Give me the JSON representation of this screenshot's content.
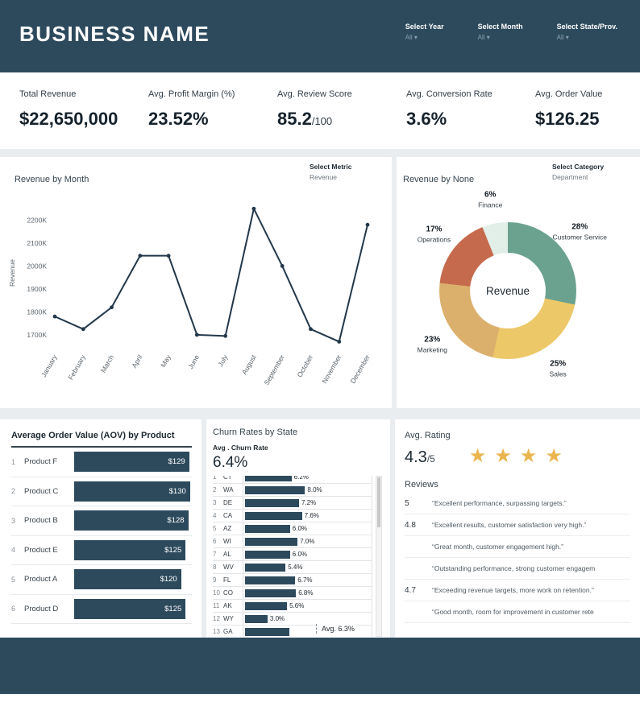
{
  "brand": {
    "navy": "#2d4a5d",
    "page_bg": "#e9edf0"
  },
  "icons": {
    "chevron_down": "▾",
    "star": "★"
  },
  "header": {
    "title": "BUSINESS NAME",
    "filters": [
      {
        "label": "Select Year",
        "value": "All"
      },
      {
        "label": "Select Month",
        "value": "All"
      },
      {
        "label": "Select State/Prov.",
        "value": "All"
      }
    ]
  },
  "kpis": [
    {
      "label": "Total Revenue",
      "value": "$22,650,000"
    },
    {
      "label": "Avg. Profit Margin (%)",
      "value": "23.52%"
    },
    {
      "label": "Avg. Review Score",
      "value": "85.2",
      "suffix": "/100"
    },
    {
      "label": "Avg. Conversion Rate",
      "value": "3.6%"
    },
    {
      "label": "Avg. Order Value",
      "value": "$126.25"
    }
  ],
  "controls": {
    "metric": {
      "label": "Select Metric",
      "value": "Revenue"
    },
    "category": {
      "label": "Select Category",
      "value": "Department"
    }
  },
  "chart_data": [
    {
      "id": "revenue_by_month",
      "type": "line",
      "title": "Revenue by Month",
      "ylabel": "Revenue",
      "unit": "K",
      "x": [
        "January",
        "February",
        "March",
        "April",
        "May",
        "June",
        "July",
        "August",
        "September",
        "October",
        "November",
        "December"
      ],
      "values": [
        1780,
        1725,
        1820,
        2045,
        2045,
        1700,
        1695,
        2250,
        2000,
        1725,
        1670,
        2180
      ],
      "ylim": [
        1640,
        2300
      ],
      "yticks": [
        1700,
        1800,
        1900,
        2000,
        2100,
        2200
      ],
      "line_color": "#22384a"
    },
    {
      "id": "revenue_by_department",
      "type": "donut",
      "title": "Revenue by None",
      "center_label": "Revenue",
      "slices": [
        {
          "name": "Customer Service",
          "pct": 28,
          "color": "#6aa28f"
        },
        {
          "name": "Sales",
          "pct": 25,
          "color": "#ecc868"
        },
        {
          "name": "Marketing",
          "pct": 23,
          "color": "#dbb06c"
        },
        {
          "name": "Operations",
          "pct": 17,
          "color": "#c66a4d"
        },
        {
          "name": "Finance",
          "pct": 6,
          "color": "#e2efe9"
        }
      ]
    },
    {
      "id": "aov_by_product",
      "type": "bar",
      "title": "Average Order Value (AOV) by Product",
      "bar_color": "#2d4a5d",
      "max_value": 132,
      "rows": [
        {
          "rank": "1",
          "name": "Product F",
          "value": 129,
          "label": "$129"
        },
        {
          "rank": "2",
          "name": "Product C",
          "value": 130,
          "label": "$130"
        },
        {
          "rank": "3",
          "name": "Product B",
          "value": 128,
          "label": "$128"
        },
        {
          "rank": "4",
          "name": "Product E",
          "value": 125,
          "label": "$125"
        },
        {
          "rank": "5",
          "name": "Product A",
          "value": 120,
          "label": "$120"
        },
        {
          "rank": "6",
          "name": "Product D",
          "value": 125,
          "label": "$125"
        }
      ]
    },
    {
      "id": "churn_by_state",
      "type": "bar",
      "title": "Churn Rates by State",
      "metric_label": "Avg . Churn Rate",
      "metric_value": "6.4%",
      "avg_label": "Avg. 6.3%",
      "bar_color": "#2d4a5d",
      "rows": [
        {
          "rank": "1",
          "state": "CT",
          "value": 6.2,
          "label": "6.2%"
        },
        {
          "rank": "2",
          "state": "WA",
          "value": 8.0,
          "label": "8.0%"
        },
        {
          "rank": "3",
          "state": "DE",
          "value": 7.2,
          "label": "7.2%"
        },
        {
          "rank": "4",
          "state": "CA",
          "value": 7.6,
          "label": "7.6%"
        },
        {
          "rank": "5",
          "state": "AZ",
          "value": 6.0,
          "label": "6.0%"
        },
        {
          "rank": "6",
          "state": "WI",
          "value": 7.0,
          "label": "7.0%"
        },
        {
          "rank": "7",
          "state": "AL",
          "value": 6.0,
          "label": "6.0%"
        },
        {
          "rank": "8",
          "state": "WV",
          "value": 5.4,
          "label": "5.4%"
        },
        {
          "rank": "9",
          "state": "FL",
          "value": 6.7,
          "label": "6.7%"
        },
        {
          "rank": "10",
          "state": "CO",
          "value": 6.8,
          "label": "6.8%"
        },
        {
          "rank": "11",
          "state": "AK",
          "value": 5.6,
          "label": "5.6%"
        },
        {
          "rank": "12",
          "state": "WY",
          "value": 3.0,
          "label": "3.0%"
        },
        {
          "rank": "13",
          "state": "GA",
          "value": 5.9,
          "label": ""
        }
      ]
    }
  ],
  "rating": {
    "title": "Avg. Rating",
    "value": "4.3",
    "suffix": "/5",
    "stars": 4,
    "star_color": "#eab54e",
    "reviews_title": "Reviews",
    "reviews": [
      {
        "score": "5",
        "text": "“Excellent performance, surpassing targets.”"
      },
      {
        "score": "4.8",
        "text": "“Excellent results, customer satisfaction very high.”"
      },
      {
        "score": "",
        "text": "“Great month, customer engagement high.”"
      },
      {
        "score": "",
        "text": "“Outstanding performance, strong customer engagem"
      },
      {
        "score": "4.7",
        "text": "“Exceeding revenue targets, more work on retention.”"
      },
      {
        "score": "",
        "text": "“Good month, room for improvement in customer rete"
      }
    ]
  }
}
